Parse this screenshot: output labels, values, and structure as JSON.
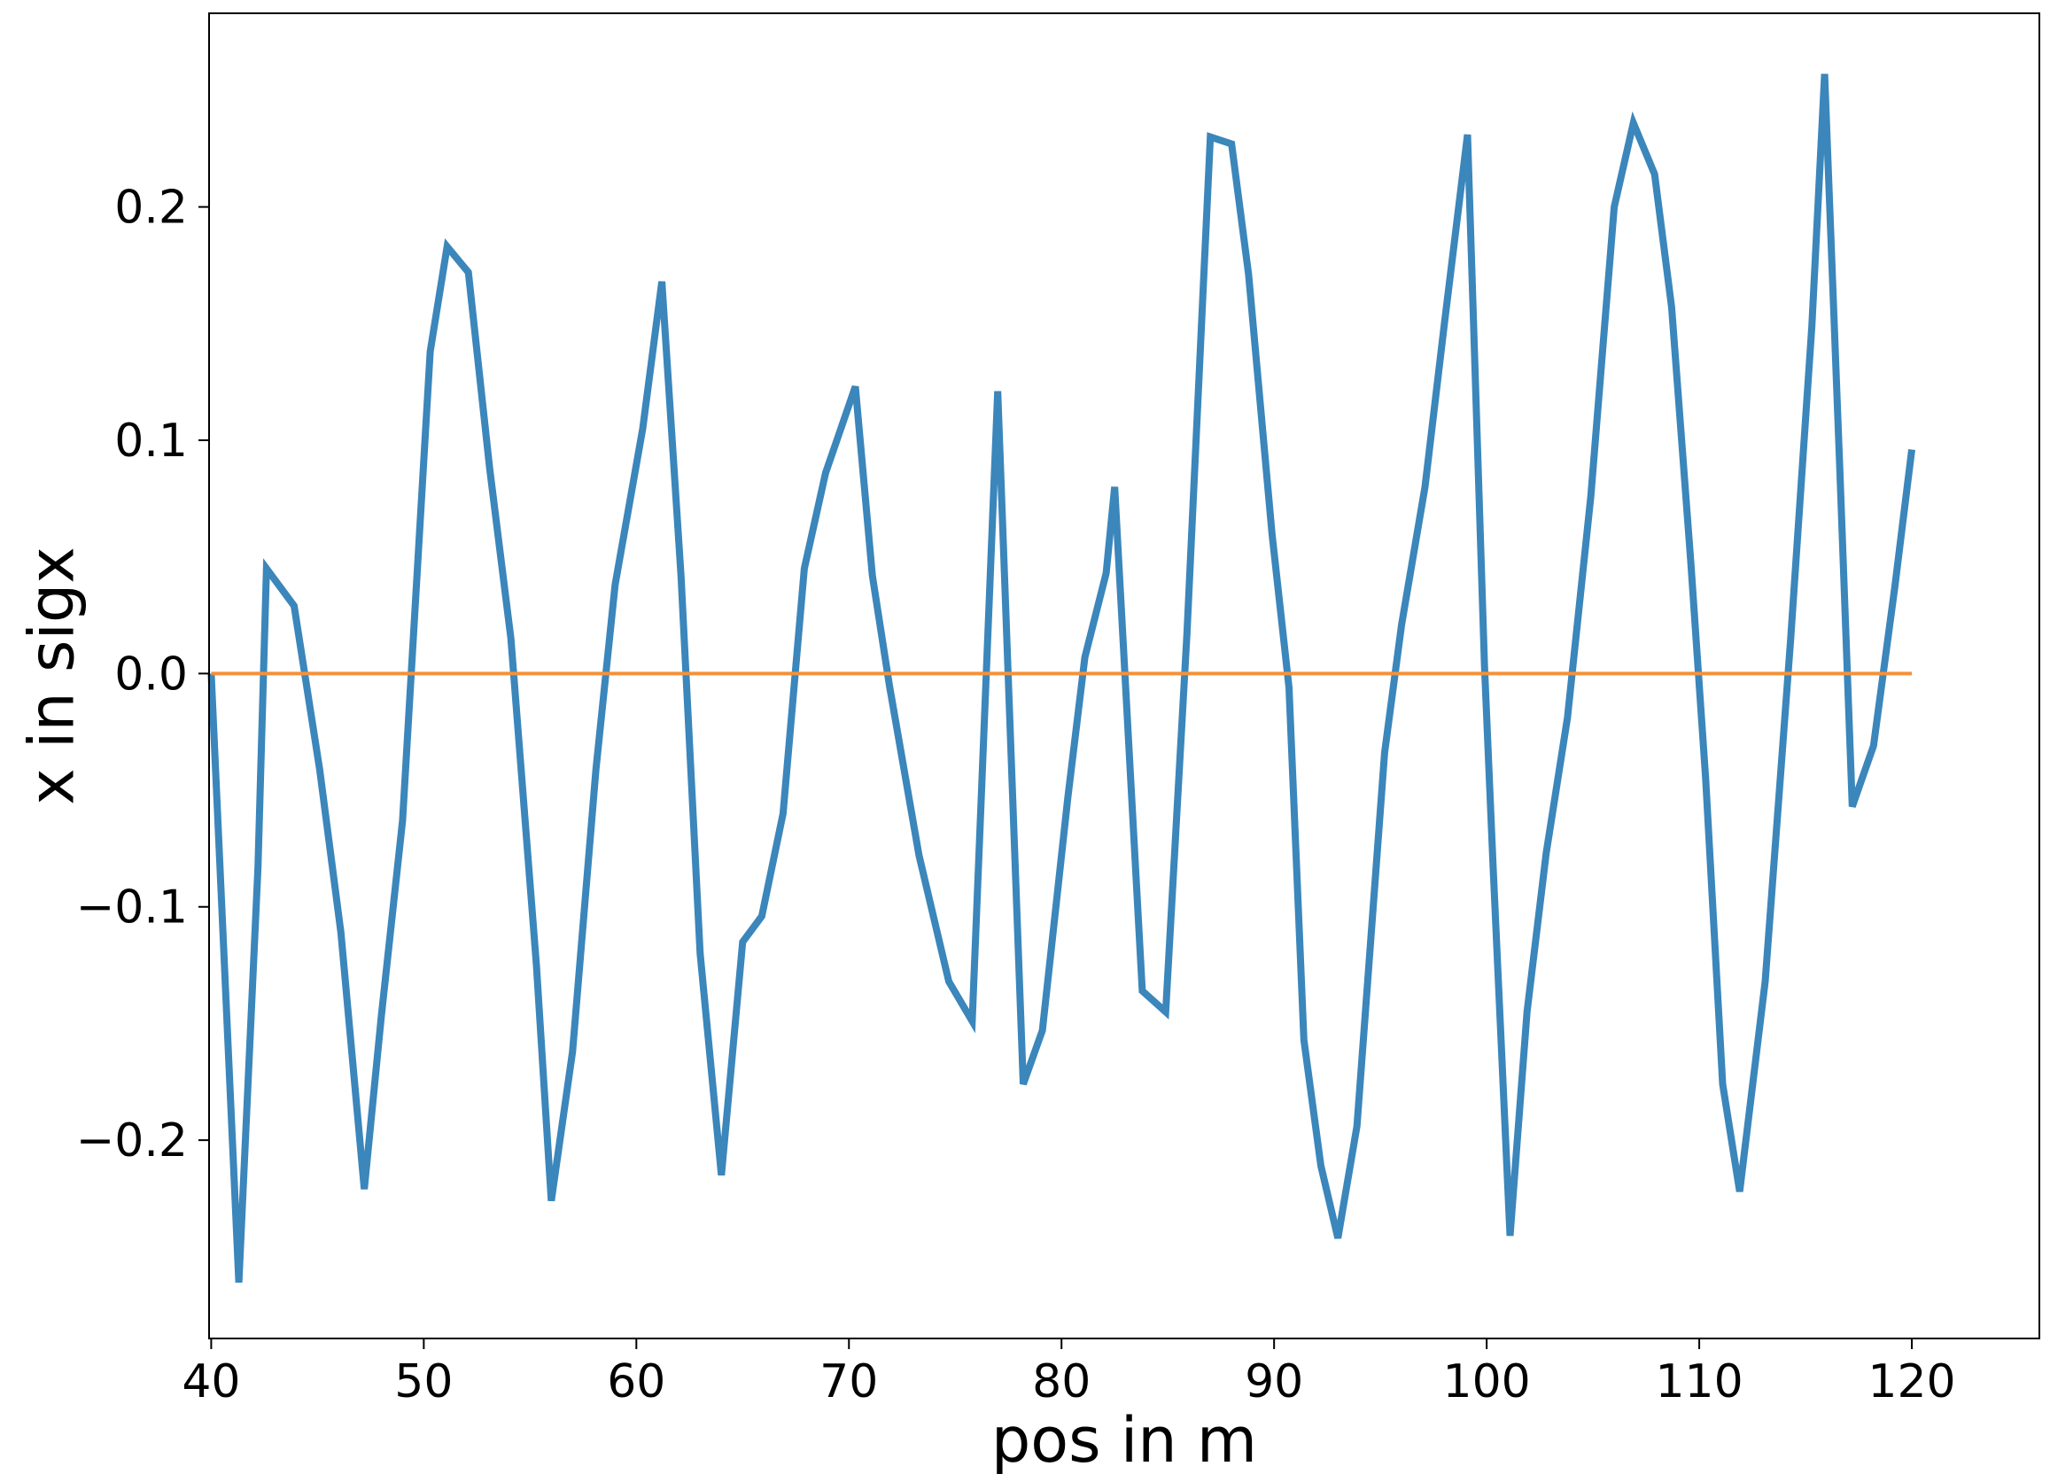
{
  "chart_data": {
    "type": "line",
    "title": "",
    "xlabel": "pos in m",
    "ylabel": "x in sigx",
    "xlim": [
      39.9,
      126.0
    ],
    "ylim": [
      -0.285,
      0.283
    ],
    "x_ticks": [
      40,
      50,
      60,
      70,
      80,
      90,
      100,
      110,
      120
    ],
    "x_tick_labels": [
      "40",
      "50",
      "60",
      "70",
      "80",
      "90",
      "100",
      "110",
      "120"
    ],
    "y_ticks": [
      -0.2,
      -0.1,
      0.0,
      0.1,
      0.2
    ],
    "y_tick_labels": [
      "−0.2",
      "−0.1",
      "0.0",
      "0.1",
      "0.2"
    ],
    "grid": false,
    "legend": "none",
    "series": [
      {
        "color": "#3b86bb",
        "x": [
          40.0,
          41.3,
          42.2,
          42.6,
          43.9,
          45.1,
          46.1,
          47.2,
          48.0,
          49.0,
          50.3,
          51.1,
          52.1,
          53.1,
          54.1,
          55.3,
          56.0,
          57.0,
          58.1,
          59.0,
          60.3,
          61.2,
          62.1,
          63.0,
          64.0,
          65.0,
          65.9,
          66.9,
          67.9,
          68.9,
          70.3,
          71.1,
          71.9,
          73.3,
          74.7,
          75.8,
          77.0,
          78.2,
          79.1,
          80.3,
          81.1,
          82.1,
          82.5,
          83.8,
          84.9,
          85.9,
          87.0,
          88.0,
          88.8,
          89.9,
          90.7,
          91.4,
          92.2,
          93.0,
          93.9,
          95.2,
          96.0,
          97.1,
          98.0,
          99.1,
          99.9,
          100.3,
          101.1,
          101.9,
          102.8,
          103.8,
          104.9,
          106.0,
          106.9,
          107.9,
          108.7,
          109.6,
          110.3,
          111.1,
          111.9,
          113.1,
          114.3,
          115.3,
          115.9,
          116.6,
          117.2,
          118.2,
          119.2,
          120.0
        ],
        "y": [
          0.0,
          -0.261,
          -0.083,
          0.045,
          0.029,
          -0.041,
          -0.111,
          -0.221,
          -0.147,
          -0.063,
          0.138,
          0.183,
          0.172,
          0.088,
          0.015,
          -0.125,
          -0.226,
          -0.162,
          -0.041,
          0.038,
          0.105,
          0.168,
          0.042,
          -0.12,
          -0.215,
          -0.115,
          -0.104,
          -0.06,
          0.045,
          0.086,
          0.123,
          0.042,
          -0.005,
          -0.078,
          -0.132,
          -0.149,
          0.121,
          -0.176,
          -0.153,
          -0.053,
          0.007,
          0.043,
          0.08,
          -0.136,
          -0.145,
          0.017,
          0.23,
          0.227,
          0.171,
          0.06,
          -0.006,
          -0.157,
          -0.211,
          -0.242,
          -0.194,
          -0.034,
          0.021,
          0.08,
          0.149,
          0.231,
          0.003,
          -0.082,
          -0.241,
          -0.145,
          -0.077,
          -0.019,
          0.076,
          0.2,
          0.236,
          0.214,
          0.157,
          0.048,
          -0.045,
          -0.176,
          -0.222,
          -0.132,
          0.015,
          0.149,
          0.257,
          0.091,
          -0.057,
          -0.031,
          0.037,
          0.096
        ]
      },
      {
        "color": "#f5913a",
        "x": [
          40.0,
          120.0
        ],
        "y": [
          0.0,
          0.0
        ]
      }
    ]
  }
}
